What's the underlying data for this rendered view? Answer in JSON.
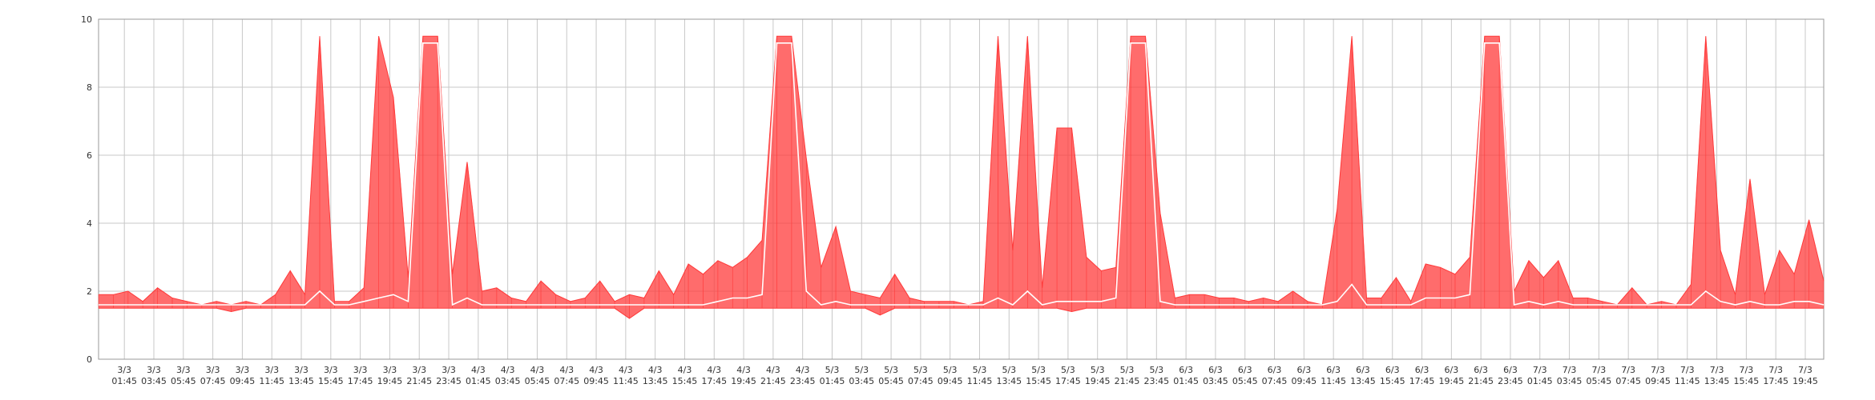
{
  "chart_data": {
    "type": "range-area",
    "x": [
      0,
      1,
      2,
      3,
      4,
      5,
      6,
      7,
      8,
      9,
      10,
      11,
      12,
      13,
      14,
      15,
      16,
      17,
      18,
      19,
      20,
      21,
      22,
      23,
      24,
      25,
      26,
      27,
      28,
      29,
      30,
      31,
      32,
      33,
      34,
      35,
      36,
      37,
      38,
      39,
      40,
      41,
      42,
      43,
      44,
      45,
      46,
      47,
      48,
      49,
      50,
      51,
      52,
      53,
      54,
      55,
      56,
      57,
      58,
      59,
      60,
      61,
      62,
      63,
      64,
      65,
      66,
      67,
      68,
      69,
      70,
      71,
      72,
      73,
      74,
      75,
      76,
      77,
      78,
      79,
      80,
      81,
      82,
      83,
      84,
      85,
      86,
      87,
      88,
      89,
      90,
      91,
      92,
      93,
      94,
      95,
      96,
      97,
      98,
      99,
      100,
      101,
      102,
      103,
      104,
      105,
      106,
      107,
      108,
      109,
      110,
      111,
      112,
      113,
      114,
      115,
      116,
      117
    ],
    "series": [
      {
        "color": "#ff3b3b",
        "values": [
          1.9,
          1.9,
          2.0,
          1.7,
          2.1,
          1.8,
          1.7,
          1.6,
          1.7,
          1.6,
          1.7,
          1.6,
          1.9,
          2.6,
          1.9,
          9.5,
          1.7,
          1.7,
          2.1,
          9.5,
          7.7,
          2.4,
          9.5,
          9.5,
          2.5,
          5.8,
          2.0,
          2.1,
          1.8,
          1.7,
          2.3,
          1.9,
          1.7,
          1.8,
          2.3,
          1.7,
          1.9,
          1.8,
          2.6,
          1.9,
          2.8,
          2.5,
          2.9,
          2.7,
          3.0,
          3.5,
          9.5,
          9.5,
          5.9,
          2.7,
          3.9,
          2.0,
          1.9,
          1.8,
          2.5,
          1.8,
          1.7,
          1.7,
          1.7,
          1.6,
          1.7,
          9.5,
          3.2,
          9.5,
          2.1,
          6.8,
          6.8,
          3.0,
          2.6,
          2.7,
          9.5,
          9.5,
          4.3,
          1.8,
          1.9,
          1.9,
          1.8,
          1.8,
          1.7,
          1.8,
          1.7,
          2.0,
          1.7,
          1.6,
          4.4,
          9.5,
          1.8,
          1.8,
          2.4,
          1.7,
          2.8,
          2.7,
          2.5,
          3.0,
          9.5,
          9.5,
          2.0,
          2.9,
          2.4,
          2.9,
          1.8,
          1.8,
          1.7,
          1.6,
          2.1,
          1.6,
          1.7,
          1.6,
          2.2,
          9.5,
          3.2,
          1.9,
          5.3,
          1.9,
          3.2,
          2.5,
          4.1,
          2.3
        ]
      },
      {
        "color": "#ff3b3b",
        "values": [
          1.5,
          1.5,
          1.5,
          1.5,
          1.5,
          1.5,
          1.5,
          1.5,
          1.5,
          1.4,
          1.5,
          1.5,
          1.5,
          1.5,
          1.5,
          1.5,
          1.5,
          1.5,
          1.5,
          1.5,
          1.5,
          1.5,
          1.5,
          1.5,
          1.5,
          1.5,
          1.5,
          1.5,
          1.5,
          1.5,
          1.5,
          1.5,
          1.5,
          1.5,
          1.5,
          1.5,
          1.2,
          1.5,
          1.5,
          1.5,
          1.5,
          1.5,
          1.5,
          1.5,
          1.5,
          1.5,
          1.5,
          1.5,
          1.5,
          1.5,
          1.5,
          1.5,
          1.5,
          1.3,
          1.5,
          1.5,
          1.5,
          1.5,
          1.5,
          1.5,
          1.5,
          1.5,
          1.5,
          1.5,
          1.5,
          1.5,
          1.4,
          1.5,
          1.5,
          1.5,
          1.5,
          1.5,
          1.5,
          1.5,
          1.5,
          1.5,
          1.5,
          1.5,
          1.5,
          1.5,
          1.5,
          1.5,
          1.5,
          1.5,
          1.5,
          1.5,
          1.5,
          1.5,
          1.5,
          1.5,
          1.5,
          1.5,
          1.5,
          1.5,
          1.5,
          1.5,
          1.5,
          1.5,
          1.5,
          1.5,
          1.5,
          1.5,
          1.5,
          1.5,
          1.5,
          1.5,
          1.5,
          1.5,
          1.5,
          1.5,
          1.5,
          1.5,
          1.5,
          1.5,
          1.5,
          1.5,
          1.5,
          1.5
        ]
      },
      {
        "color": "#ffffff",
        "values": [
          1.6,
          1.6,
          1.6,
          1.6,
          1.6,
          1.6,
          1.6,
          1.6,
          1.6,
          1.6,
          1.6,
          1.6,
          1.6,
          1.6,
          1.6,
          2.0,
          1.6,
          1.6,
          1.7,
          1.8,
          1.9,
          1.7,
          9.3,
          9.3,
          1.6,
          1.8,
          1.6,
          1.6,
          1.6,
          1.6,
          1.6,
          1.6,
          1.6,
          1.6,
          1.6,
          1.6,
          1.6,
          1.6,
          1.6,
          1.6,
          1.6,
          1.6,
          1.7,
          1.8,
          1.8,
          1.9,
          9.3,
          9.3,
          2.0,
          1.6,
          1.7,
          1.6,
          1.6,
          1.6,
          1.6,
          1.6,
          1.6,
          1.6,
          1.6,
          1.6,
          1.6,
          1.8,
          1.6,
          2.0,
          1.6,
          1.7,
          1.7,
          1.7,
          1.7,
          1.8,
          9.3,
          9.3,
          1.7,
          1.6,
          1.6,
          1.6,
          1.6,
          1.6,
          1.6,
          1.6,
          1.6,
          1.6,
          1.6,
          1.6,
          1.7,
          2.2,
          1.6,
          1.6,
          1.6,
          1.6,
          1.8,
          1.8,
          1.8,
          1.9,
          9.3,
          9.3,
          1.6,
          1.7,
          1.6,
          1.7,
          1.6,
          1.6,
          1.6,
          1.6,
          1.6,
          1.6,
          1.6,
          1.6,
          1.6,
          2.0,
          1.7,
          1.6,
          1.7,
          1.6,
          1.6,
          1.7,
          1.7,
          1.6
        ]
      }
    ],
    "xlim": [
      0,
      117
    ],
    "xticks": [
      {
        "value": 1.75,
        "label": "3/3 01:45"
      },
      {
        "value": 3.75,
        "label": "3/3 03:45"
      },
      {
        "value": 5.75,
        "label": "3/3 05:45"
      },
      {
        "value": 7.75,
        "label": "3/3 07:45"
      },
      {
        "value": 9.75,
        "label": "3/3 09:45"
      },
      {
        "value": 11.75,
        "label": "3/3 11:45"
      },
      {
        "value": 13.75,
        "label": "3/3 13:45"
      },
      {
        "value": 15.75,
        "label": "3/3 15:45"
      },
      {
        "value": 17.75,
        "label": "3/3 17:45"
      },
      {
        "value": 19.75,
        "label": "3/3 19:45"
      },
      {
        "value": 21.75,
        "label": "3/3 21:45"
      },
      {
        "value": 23.75,
        "label": "3/3 23:45"
      },
      {
        "value": 25.75,
        "label": "4/3 01:45"
      },
      {
        "value": 27.75,
        "label": "4/3 03:45"
      },
      {
        "value": 29.75,
        "label": "4/3 05:45"
      },
      {
        "value": 31.75,
        "label": "4/3 07:45"
      },
      {
        "value": 33.75,
        "label": "4/3 09:45"
      },
      {
        "value": 35.75,
        "label": "4/3 11:45"
      },
      {
        "value": 37.75,
        "label": "4/3 13:45"
      },
      {
        "value": 39.75,
        "label": "4/3 15:45"
      },
      {
        "value": 41.75,
        "label": "4/3 17:45"
      },
      {
        "value": 43.75,
        "label": "4/3 19:45"
      },
      {
        "value": 45.75,
        "label": "4/3 21:45"
      },
      {
        "value": 47.75,
        "label": "4/3 23:45"
      },
      {
        "value": 49.75,
        "label": "5/3 01:45"
      },
      {
        "value": 51.75,
        "label": "5/3 03:45"
      },
      {
        "value": 53.75,
        "label": "5/3 05:45"
      },
      {
        "value": 55.75,
        "label": "5/3 07:45"
      },
      {
        "value": 57.75,
        "label": "5/3 09:45"
      },
      {
        "value": 59.75,
        "label": "5/3 11:45"
      },
      {
        "value": 61.75,
        "label": "5/3 13:45"
      },
      {
        "value": 63.75,
        "label": "5/3 15:45"
      },
      {
        "value": 65.75,
        "label": "5/3 17:45"
      },
      {
        "value": 67.75,
        "label": "5/3 19:45"
      },
      {
        "value": 69.75,
        "label": "5/3 21:45"
      },
      {
        "value": 71.75,
        "label": "5/3 23:45"
      },
      {
        "value": 73.75,
        "label": "6/3 01:45"
      },
      {
        "value": 75.75,
        "label": "6/3 03:45"
      },
      {
        "value": 77.75,
        "label": "6/3 05:45"
      },
      {
        "value": 79.75,
        "label": "6/3 07:45"
      },
      {
        "value": 81.75,
        "label": "6/3 09:45"
      },
      {
        "value": 83.75,
        "label": "6/3 11:45"
      },
      {
        "value": 85.75,
        "label": "6/3 13:45"
      },
      {
        "value": 87.75,
        "label": "6/3 15:45"
      },
      {
        "value": 89.75,
        "label": "6/3 17:45"
      },
      {
        "value": 91.75,
        "label": "6/3 19:45"
      },
      {
        "value": 93.75,
        "label": "6/3 21:45"
      },
      {
        "value": 95.75,
        "label": "6/3 23:45"
      },
      {
        "value": 97.75,
        "label": "7/3 01:45"
      },
      {
        "value": 99.75,
        "label": "7/3 03:45"
      },
      {
        "value": 101.75,
        "label": "7/3 05:45"
      },
      {
        "value": 103.75,
        "label": "7/3 07:45"
      },
      {
        "value": 105.75,
        "label": "7/3 09:45"
      },
      {
        "value": 107.75,
        "label": "7/3 11:45"
      },
      {
        "value": 109.75,
        "label": "7/3 13:45"
      },
      {
        "value": 111.75,
        "label": "7/3 15:45"
      },
      {
        "value": 113.75,
        "label": "7/3 17:45"
      },
      {
        "value": 115.75,
        "label": "7/3 19:45"
      }
    ],
    "ylim": [
      0,
      10
    ],
    "yticks": [
      0,
      2,
      4,
      6,
      8,
      10
    ],
    "grid": true
  }
}
